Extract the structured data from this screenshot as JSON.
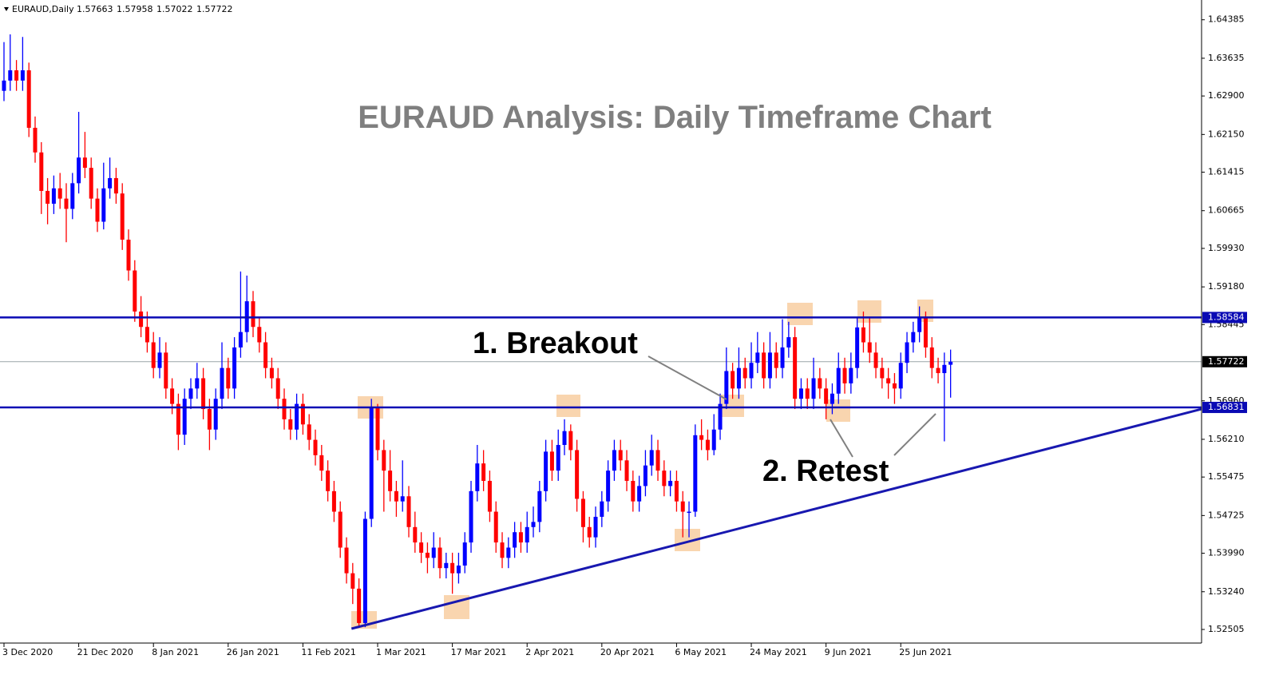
{
  "chart_data": {
    "type": "candlestick",
    "symbol": "EURAUD,Daily",
    "title": "EURAUD Analysis: Daily Timeframe Chart",
    "annotations": [
      "1. Breakout",
      "2. Retest"
    ],
    "up_color": "#0000ff",
    "down_color": "#ff0000",
    "level_color": "#0a0ab4",
    "trendline_color": "#1818b0",
    "xlim": [
      -0.64,
      192.3
    ],
    "ylim": [
      1.5224,
      1.6477
    ],
    "yticks": [
      1.64385,
      1.63635,
      {
        "value": 1.629,
        "label": "1.62900"
      },
      {
        "value": 1.6215,
        "label": "1.62150"
      },
      1.61415,
      1.60665,
      {
        "value": 1.5993,
        "label": "1.59930"
      },
      {
        "value": 1.5918,
        "label": "1.59180"
      },
      1.58445,
      {
        "value": 1.5696,
        "label": "1.56960"
      },
      {
        "value": 1.5621,
        "label": "1.56210"
      },
      1.55475,
      1.54725,
      {
        "value": 1.5399,
        "label": "1.53990"
      },
      {
        "value": 1.5324,
        "label": "1.53240"
      },
      1.52505
    ],
    "xticks": [
      {
        "value": 0,
        "label": "3 Dec 2020"
      },
      {
        "value": 12,
        "label": "21 Dec 2020"
      },
      {
        "value": 24,
        "label": "8 Jan 2021"
      },
      {
        "value": 36,
        "label": "26 Jan 2021"
      },
      {
        "value": 48,
        "label": "11 Feb 2021"
      },
      {
        "value": 60,
        "label": "1 Mar 2021"
      },
      {
        "value": 72,
        "label": "17 Mar 2021"
      },
      {
        "value": 84,
        "label": "2 Apr 2021"
      },
      {
        "value": 96,
        "label": "20 Apr 2021"
      },
      {
        "value": 108,
        "label": "6 May 2021"
      },
      {
        "value": 120,
        "label": "24 May 2021"
      },
      {
        "value": 132,
        "label": "9 Jun 2021"
      },
      {
        "value": 144,
        "label": "25 Jun 2021"
      }
    ],
    "levels": [
      1.58584,
      1.56831
    ],
    "trendline": {
      "x": [
        55.8,
        192.3
      ],
      "y": [
        1.5252,
        1.568
      ]
    },
    "ohlc": [
      [
        1.63,
        1.6395,
        1.628,
        1.632
      ],
      [
        1.632,
        1.641,
        1.63,
        1.634
      ],
      [
        1.634,
        1.636,
        1.63,
        1.632
      ],
      [
        1.632,
        1.6405,
        1.63,
        1.634
      ],
      [
        1.634,
        1.6355,
        1.621,
        1.6228
      ],
      [
        1.6228,
        1.625,
        1.616,
        1.618
      ],
      [
        1.618,
        1.62,
        1.606,
        1.6105
      ],
      [
        1.6105,
        1.613,
        1.604,
        1.608
      ],
      [
        1.608,
        1.6135,
        1.606,
        1.611
      ],
      [
        1.611,
        1.614,
        1.607,
        1.609
      ],
      [
        1.609,
        1.612,
        1.6005,
        1.607
      ],
      [
        1.607,
        1.614,
        1.605,
        1.612
      ],
      [
        1.612,
        1.6259,
        1.61,
        1.617
      ],
      [
        1.617,
        1.622,
        1.613,
        1.615
      ],
      [
        1.615,
        1.617,
        1.607,
        1.609
      ],
      [
        1.609,
        1.611,
        1.6025,
        1.6045
      ],
      [
        1.6045,
        1.616,
        1.603,
        1.611
      ],
      [
        1.611,
        1.617,
        1.609,
        1.613
      ],
      [
        1.613,
        1.615,
        1.608,
        1.61
      ],
      [
        1.61,
        1.612,
        1.599,
        1.601
      ],
      [
        1.601,
        1.603,
        1.593,
        1.595
      ],
      [
        1.595,
        1.597,
        1.585,
        1.587
      ],
      [
        1.587,
        1.59,
        1.582,
        1.584
      ],
      [
        1.584,
        1.587,
        1.579,
        1.581
      ],
      [
        1.581,
        1.583,
        1.574,
        1.576
      ],
      [
        1.576,
        1.582,
        1.574,
        1.579
      ],
      [
        1.579,
        1.581,
        1.57,
        1.572
      ],
      [
        1.572,
        1.574,
        1.567,
        1.569
      ],
      [
        1.569,
        1.571,
        1.56,
        1.563
      ],
      [
        1.563,
        1.572,
        1.561,
        1.57
      ],
      [
        1.57,
        1.574,
        1.568,
        1.572
      ],
      [
        1.572,
        1.577,
        1.57,
        1.574
      ],
      [
        1.574,
        1.576,
        1.566,
        1.568
      ],
      [
        1.568,
        1.57,
        1.56,
        1.564
      ],
      [
        1.564,
        1.572,
        1.562,
        1.57
      ],
      [
        1.57,
        1.581,
        1.568,
        1.576
      ],
      [
        1.576,
        1.578,
        1.57,
        1.572
      ],
      [
        1.572,
        1.582,
        1.57,
        1.58
      ],
      [
        1.58,
        1.5948,
        1.578,
        1.583
      ],
      [
        1.583,
        1.594,
        1.581,
        1.589
      ],
      [
        1.589,
        1.591,
        1.582,
        1.584
      ],
      [
        1.584,
        1.586,
        1.579,
        1.581
      ],
      [
        1.581,
        1.583,
        1.574,
        1.576
      ],
      [
        1.576,
        1.578,
        1.572,
        1.574
      ],
      [
        1.574,
        1.576,
        1.568,
        1.57
      ],
      [
        1.57,
        1.572,
        1.564,
        1.566
      ],
      [
        1.566,
        1.568,
        1.562,
        1.564
      ],
      [
        1.564,
        1.571,
        1.562,
        1.569
      ],
      [
        1.569,
        1.571,
        1.563,
        1.565
      ],
      [
        1.565,
        1.567,
        1.56,
        1.562
      ],
      [
        1.562,
        1.564,
        1.557,
        1.559
      ],
      [
        1.559,
        1.561,
        1.554,
        1.556
      ],
      [
        1.556,
        1.558,
        1.55,
        1.552
      ],
      [
        1.552,
        1.554,
        1.546,
        1.548
      ],
      [
        1.548,
        1.55,
        1.539,
        1.541
      ],
      [
        1.541,
        1.543,
        1.534,
        1.536
      ],
      [
        1.536,
        1.538,
        1.53,
        1.533
      ],
      [
        1.533,
        1.535,
        1.5255,
        1.5263
      ],
      [
        1.5263,
        1.548,
        1.5255,
        1.5466
      ],
      [
        1.5466,
        1.57,
        1.545,
        1.5684
      ],
      [
        1.5684,
        1.569,
        1.558,
        1.56
      ],
      [
        1.56,
        1.562,
        1.548,
        1.556
      ],
      [
        1.556,
        1.56,
        1.55,
        1.552
      ],
      [
        1.552,
        1.554,
        1.547,
        1.55
      ],
      [
        1.55,
        1.558,
        1.548,
        1.551
      ],
      [
        1.551,
        1.553,
        1.543,
        1.545
      ],
      [
        1.545,
        1.548,
        1.54,
        1.542
      ],
      [
        1.542,
        1.544,
        1.538,
        1.54
      ],
      [
        1.54,
        1.542,
        1.536,
        1.539
      ],
      [
        1.539,
        1.544,
        1.537,
        1.541
      ],
      [
        1.541,
        1.543,
        1.535,
        1.537
      ],
      [
        1.537,
        1.54,
        1.535,
        1.538
      ],
      [
        1.538,
        1.54,
        1.532,
        1.536
      ],
      [
        1.536,
        1.54,
        1.534,
        1.5375
      ],
      [
        1.5375,
        1.544,
        1.536,
        1.542
      ],
      [
        1.542,
        1.554,
        1.54,
        1.552
      ],
      [
        1.552,
        1.561,
        1.55,
        1.5574
      ],
      [
        1.5574,
        1.56,
        1.552,
        1.554
      ],
      [
        1.554,
        1.556,
        1.546,
        1.548
      ],
      [
        1.548,
        1.55,
        1.54,
        1.542
      ],
      [
        1.542,
        1.544,
        1.537,
        1.539
      ],
      [
        1.539,
        1.543,
        1.537,
        1.541
      ],
      [
        1.541,
        1.546,
        1.539,
        1.544
      ],
      [
        1.544,
        1.546,
        1.54,
        1.542
      ],
      [
        1.542,
        1.548,
        1.54,
        1.545
      ],
      [
        1.545,
        1.549,
        1.543,
        1.546
      ],
      [
        1.546,
        1.554,
        1.544,
        1.552
      ],
      [
        1.552,
        1.562,
        1.55,
        1.5597
      ],
      [
        1.5597,
        1.562,
        1.554,
        1.556
      ],
      [
        1.556,
        1.564,
        1.554,
        1.561
      ],
      [
        1.561,
        1.566,
        1.559,
        1.5637
      ],
      [
        1.5637,
        1.565,
        1.558,
        1.56
      ],
      [
        1.56,
        1.562,
        1.548,
        1.5505
      ],
      [
        1.5505,
        1.552,
        1.542,
        1.545
      ],
      [
        1.545,
        1.547,
        1.541,
        1.543
      ],
      [
        1.543,
        1.549,
        1.541,
        1.547
      ],
      [
        1.547,
        1.552,
        1.545,
        1.55
      ],
      [
        1.55,
        1.558,
        1.548,
        1.556
      ],
      [
        1.556,
        1.562,
        1.554,
        1.56
      ],
      [
        1.56,
        1.562,
        1.556,
        1.558
      ],
      [
        1.558,
        1.56,
        1.552,
        1.554
      ],
      [
        1.554,
        1.556,
        1.548,
        1.55
      ],
      [
        1.55,
        1.555,
        1.548,
        1.553
      ],
      [
        1.553,
        1.56,
        1.551,
        1.557
      ],
      [
        1.557,
        1.563,
        1.555,
        1.56
      ],
      [
        1.56,
        1.562,
        1.554,
        1.556
      ],
      [
        1.556,
        1.558,
        1.551,
        1.553
      ],
      [
        1.553,
        1.556,
        1.551,
        1.554
      ],
      [
        1.554,
        1.556,
        1.548,
        1.55
      ],
      [
        1.55,
        1.552,
        1.543,
        1.548
      ],
      [
        1.548,
        1.55,
        1.543,
        1.548
      ],
      [
        1.548,
        1.565,
        1.547,
        1.5629
      ],
      [
        1.5629,
        1.566,
        1.56,
        1.562
      ],
      [
        1.562,
        1.564,
        1.558,
        1.56
      ],
      [
        1.56,
        1.567,
        1.559,
        1.564
      ],
      [
        1.564,
        1.571,
        1.562,
        1.569
      ],
      [
        1.569,
        1.58,
        1.568,
        1.5754
      ],
      [
        1.5754,
        1.577,
        1.57,
        1.572
      ],
      [
        1.572,
        1.58,
        1.57,
        1.576
      ],
      [
        1.576,
        1.578,
        1.572,
        1.574
      ],
      [
        1.574,
        1.581,
        1.572,
        1.577
      ],
      [
        1.577,
        1.583,
        1.575,
        1.579
      ],
      [
        1.579,
        1.581,
        1.572,
        1.574
      ],
      [
        1.574,
        1.583,
        1.572,
        1.579
      ],
      [
        1.579,
        1.581,
        1.574,
        1.576
      ],
      [
        1.576,
        1.5855,
        1.574,
        1.58
      ],
      [
        1.58,
        1.585,
        1.578,
        1.582
      ],
      [
        1.582,
        1.584,
        1.568,
        1.57
      ],
      [
        1.57,
        1.574,
        1.568,
        1.572
      ],
      [
        1.572,
        1.574,
        1.568,
        1.57
      ],
      [
        1.57,
        1.578,
        1.568,
        1.574
      ],
      [
        1.574,
        1.576,
        1.57,
        1.572
      ],
      [
        1.572,
        1.574,
        1.566,
        1.569
      ],
      [
        1.569,
        1.573,
        1.567,
        1.571
      ],
      [
        1.571,
        1.579,
        1.569,
        1.576
      ],
      [
        1.576,
        1.578,
        1.571,
        1.573
      ],
      [
        1.573,
        1.579,
        1.571,
        1.576
      ],
      [
        1.576,
        1.586,
        1.574,
        1.5839
      ],
      [
        1.5839,
        1.587,
        1.579,
        1.581
      ],
      [
        1.581,
        1.586,
        1.577,
        1.579
      ],
      [
        1.579,
        1.581,
        1.574,
        1.576
      ],
      [
        1.576,
        1.578,
        1.572,
        1.574
      ],
      [
        1.574,
        1.576,
        1.57,
        1.573
      ],
      [
        1.573,
        1.575,
        1.569,
        1.572
      ],
      [
        1.572,
        1.579,
        1.57,
        1.577
      ],
      [
        1.577,
        1.583,
        1.575,
        1.581
      ],
      [
        1.581,
        1.585,
        1.579,
        1.583
      ],
      [
        1.583,
        1.588,
        1.581,
        1.586
      ],
      [
        1.586,
        1.587,
        1.578,
        1.58
      ],
      [
        1.58,
        1.582,
        1.574,
        1.576
      ],
      [
        1.576,
        1.578,
        1.573,
        1.575
      ],
      [
        1.575,
        1.579,
        1.5617,
        1.5766
      ],
      [
        1.57663,
        1.57958,
        1.57022,
        1.57722
      ]
    ]
  }
}
